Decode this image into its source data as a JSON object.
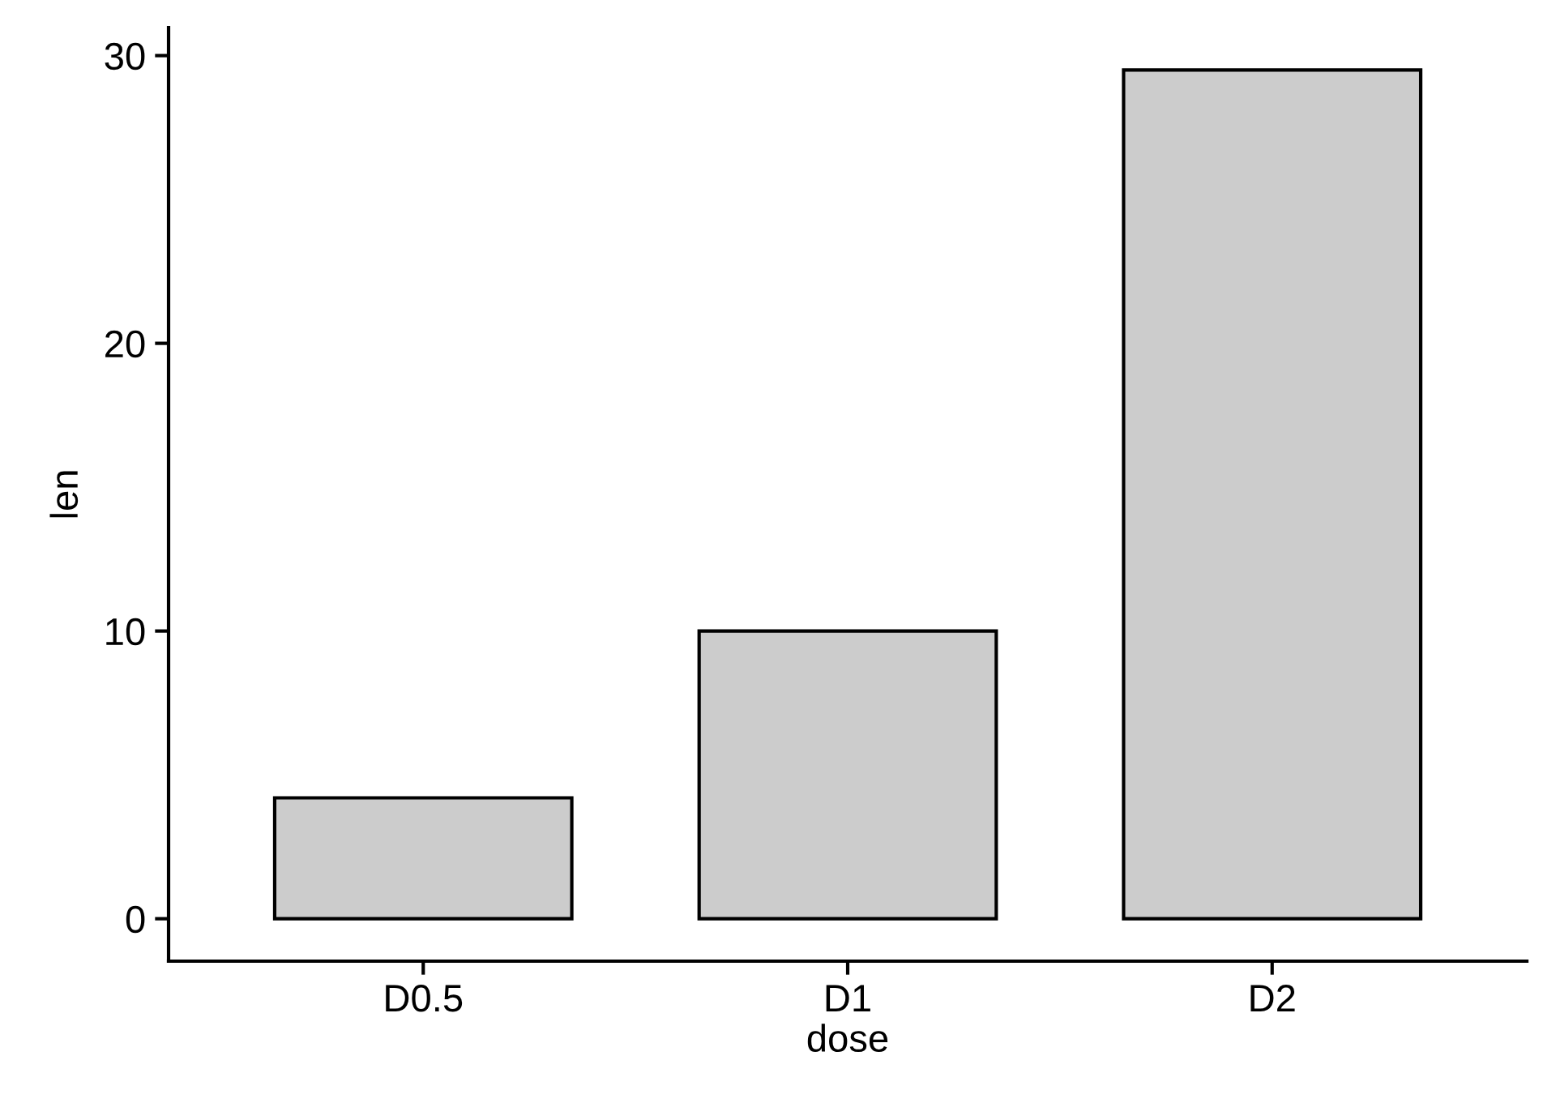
{
  "chart_data": {
    "type": "bar",
    "xlabel": "dose",
    "ylabel": "len",
    "categories": [
      "D0.5",
      "D1",
      "D2"
    ],
    "values": [
      4.2,
      10.0,
      29.5
    ],
    "color": "#cccccc",
    "ylim": [
      -1.475,
      30.975
    ],
    "yticks": [
      0,
      10,
      20,
      30
    ],
    "grid": false
  }
}
